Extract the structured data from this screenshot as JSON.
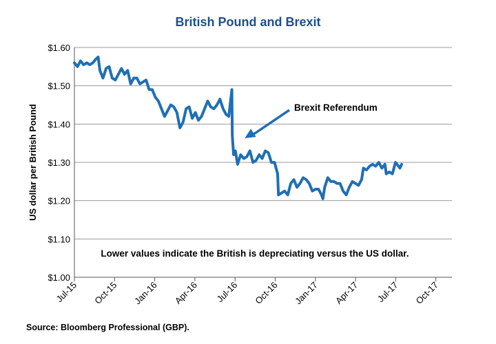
{
  "chart_data": {
    "type": "line",
    "title": "British Pound and Brexit",
    "ylabel": "US dollar per British Pound",
    "xlabel": "",
    "ylim": [
      1.0,
      1.6
    ],
    "yticks": [
      1.0,
      1.1,
      1.2,
      1.3,
      1.4,
      1.5,
      1.6
    ],
    "ytick_labels": [
      "$1.00",
      "$1.10",
      "$1.20",
      "$1.30",
      "$1.40",
      "$1.50",
      "$1.60"
    ],
    "xticks": [
      "Jul-15",
      "Oct-15",
      "Jan-16",
      "Apr-16",
      "Jul-16",
      "Oct-16",
      "Jan-17",
      "Apr-17",
      "Jul-17",
      "Oct-17"
    ],
    "grid": "horizontal",
    "line_color": "#1f6fb5",
    "series": [
      {
        "values": [
          [
            "2015-07-01",
            1.56
          ],
          [
            "2015-07-08",
            1.55
          ],
          [
            "2015-07-15",
            1.565
          ],
          [
            "2015-07-22",
            1.555
          ],
          [
            "2015-07-29",
            1.56
          ],
          [
            "2015-08-05",
            1.555
          ],
          [
            "2015-08-12",
            1.56
          ],
          [
            "2015-08-19",
            1.57
          ],
          [
            "2015-08-24",
            1.575
          ],
          [
            "2015-08-28",
            1.54
          ],
          [
            "2015-09-04",
            1.52
          ],
          [
            "2015-09-11",
            1.545
          ],
          [
            "2015-09-18",
            1.55
          ],
          [
            "2015-09-25",
            1.52
          ],
          [
            "2015-10-02",
            1.515
          ],
          [
            "2015-10-09",
            1.53
          ],
          [
            "2015-10-16",
            1.545
          ],
          [
            "2015-10-23",
            1.53
          ],
          [
            "2015-10-30",
            1.54
          ],
          [
            "2015-11-06",
            1.505
          ],
          [
            "2015-11-13",
            1.52
          ],
          [
            "2015-11-20",
            1.52
          ],
          [
            "2015-11-27",
            1.505
          ],
          [
            "2015-12-04",
            1.51
          ],
          [
            "2015-12-11",
            1.515
          ],
          [
            "2015-12-18",
            1.49
          ],
          [
            "2015-12-25",
            1.49
          ],
          [
            "2016-01-01",
            1.47
          ],
          [
            "2016-01-08",
            1.46
          ],
          [
            "2016-01-15",
            1.44
          ],
          [
            "2016-01-22",
            1.42
          ],
          [
            "2016-01-29",
            1.435
          ],
          [
            "2016-02-05",
            1.45
          ],
          [
            "2016-02-12",
            1.445
          ],
          [
            "2016-02-19",
            1.43
          ],
          [
            "2016-02-26",
            1.39
          ],
          [
            "2016-03-04",
            1.405
          ],
          [
            "2016-03-11",
            1.44
          ],
          [
            "2016-03-18",
            1.445
          ],
          [
            "2016-03-25",
            1.415
          ],
          [
            "2016-04-01",
            1.43
          ],
          [
            "2016-04-08",
            1.41
          ],
          [
            "2016-04-15",
            1.42
          ],
          [
            "2016-04-22",
            1.44
          ],
          [
            "2016-04-29",
            1.46
          ],
          [
            "2016-05-06",
            1.445
          ],
          [
            "2016-05-13",
            1.44
          ],
          [
            "2016-05-20",
            1.45
          ],
          [
            "2016-05-27",
            1.465
          ],
          [
            "2016-06-03",
            1.44
          ],
          [
            "2016-06-10",
            1.425
          ],
          [
            "2016-06-16",
            1.42
          ],
          [
            "2016-06-23",
            1.49
          ],
          [
            "2016-06-24",
            1.37
          ],
          [
            "2016-06-27",
            1.32
          ],
          [
            "2016-07-01",
            1.33
          ],
          [
            "2016-07-06",
            1.295
          ],
          [
            "2016-07-13",
            1.32
          ],
          [
            "2016-07-20",
            1.31
          ],
          [
            "2016-07-27",
            1.315
          ],
          [
            "2016-08-03",
            1.33
          ],
          [
            "2016-08-10",
            1.3
          ],
          [
            "2016-08-17",
            1.305
          ],
          [
            "2016-08-24",
            1.32
          ],
          [
            "2016-08-31",
            1.31
          ],
          [
            "2016-09-07",
            1.33
          ],
          [
            "2016-09-14",
            1.325
          ],
          [
            "2016-09-21",
            1.3
          ],
          [
            "2016-09-28",
            1.3
          ],
          [
            "2016-10-05",
            1.27
          ],
          [
            "2016-10-07",
            1.215
          ],
          [
            "2016-10-14",
            1.22
          ],
          [
            "2016-10-21",
            1.225
          ],
          [
            "2016-10-28",
            1.215
          ],
          [
            "2016-11-04",
            1.245
          ],
          [
            "2016-11-11",
            1.255
          ],
          [
            "2016-11-18",
            1.235
          ],
          [
            "2016-11-25",
            1.245
          ],
          [
            "2016-12-02",
            1.26
          ],
          [
            "2016-12-09",
            1.255
          ],
          [
            "2016-12-16",
            1.245
          ],
          [
            "2016-12-23",
            1.225
          ],
          [
            "2016-12-30",
            1.23
          ],
          [
            "2017-01-06",
            1.23
          ],
          [
            "2017-01-13",
            1.215
          ],
          [
            "2017-01-16",
            1.205
          ],
          [
            "2017-01-20",
            1.235
          ],
          [
            "2017-01-27",
            1.26
          ],
          [
            "2017-02-03",
            1.25
          ],
          [
            "2017-02-10",
            1.25
          ],
          [
            "2017-02-17",
            1.245
          ],
          [
            "2017-02-24",
            1.245
          ],
          [
            "2017-03-03",
            1.225
          ],
          [
            "2017-03-10",
            1.215
          ],
          [
            "2017-03-17",
            1.235
          ],
          [
            "2017-03-24",
            1.25
          ],
          [
            "2017-03-31",
            1.245
          ],
          [
            "2017-04-07",
            1.24
          ],
          [
            "2017-04-14",
            1.255
          ],
          [
            "2017-04-18",
            1.285
          ],
          [
            "2017-04-25",
            1.28
          ],
          [
            "2017-05-02",
            1.29
          ],
          [
            "2017-05-09",
            1.295
          ],
          [
            "2017-05-16",
            1.29
          ],
          [
            "2017-05-23",
            1.3
          ],
          [
            "2017-05-30",
            1.285
          ],
          [
            "2017-06-06",
            1.295
          ],
          [
            "2017-06-09",
            1.27
          ],
          [
            "2017-06-16",
            1.275
          ],
          [
            "2017-06-23",
            1.27
          ],
          [
            "2017-06-30",
            1.3
          ],
          [
            "2017-07-07",
            1.29
          ],
          [
            "2017-07-10",
            1.285
          ],
          [
            "2017-07-14",
            1.295
          ]
        ]
      }
    ],
    "annotations": [
      {
        "text": "Brexit Referendum",
        "target": [
          "2016-06-24",
          1.37
        ]
      },
      {
        "text": "Lower values indicate the British is depreciating versus the US dollar."
      }
    ]
  },
  "footer": {
    "source": "Source:  Bloomberg Professional (GBP)."
  }
}
